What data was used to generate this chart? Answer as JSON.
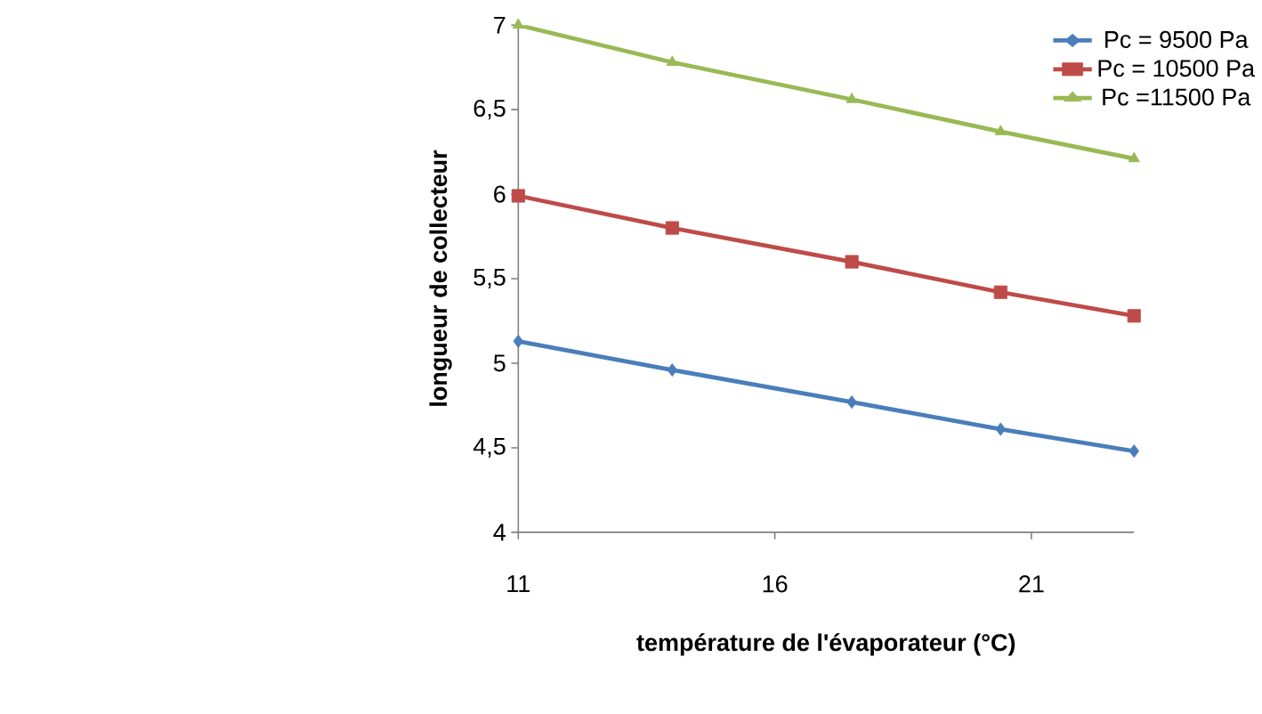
{
  "chart_data": {
    "type": "line",
    "xlabel": "température de l'évaporateur (°C)",
    "ylabel": "longueur de collecteur",
    "x": [
      11,
      14,
      17.5,
      20.4,
      23
    ],
    "series": [
      {
        "name": "Pc = 9500  Pa",
        "color": "#4a7ebb",
        "marker": "diamond",
        "values": [
          5.13,
          4.96,
          4.77,
          4.61,
          4.48
        ]
      },
      {
        "name": "Pc = 10500  Pa",
        "color": "#be4b48",
        "marker": "square",
        "values": [
          5.99,
          5.8,
          5.6,
          5.42,
          5.28
        ]
      },
      {
        "name": "Pc =11500  Pa",
        "color": "#98b954",
        "marker": "triangle",
        "values": [
          7.0,
          6.78,
          6.56,
          6.37,
          6.21
        ]
      }
    ],
    "xlim": [
      11,
      23
    ],
    "xticks": [
      11,
      16,
      21
    ],
    "ylim": [
      4,
      7
    ],
    "yticks": [
      4,
      {
        "value": 4.5,
        "label": "4,5"
      },
      5,
      {
        "value": 5.5,
        "label": "5,5"
      },
      6,
      {
        "value": 6.5,
        "label": "6,5"
      },
      7
    ],
    "grid": false,
    "legend": "top right",
    "line_style": "solid"
  }
}
